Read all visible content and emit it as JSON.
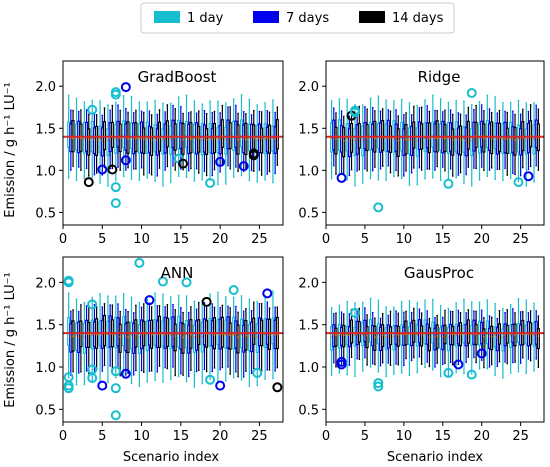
{
  "figure": {
    "xlabel": "Scenario index",
    "ylabel": "Emission  /  g h⁻¹ LU⁻¹",
    "legend": {
      "placement": "top-center",
      "entries": [
        {
          "label": "1 day",
          "color": "#17becf"
        },
        {
          "label": "7 days",
          "color": "#0000ee"
        },
        {
          "label": "14 days",
          "color": "#000000"
        }
      ]
    },
    "reference_line": {
      "value": 1.4,
      "color": "#d62728"
    }
  },
  "chart_data": [
    {
      "type": "box",
      "title": "GradBoost",
      "grid": false,
      "xlim": [
        0,
        28
      ],
      "ylim": [
        0.35,
        2.3
      ],
      "xticks": [
        0,
        5,
        10,
        15,
        20,
        25
      ],
      "yticks": [
        0.5,
        1.0,
        1.5,
        2.0
      ],
      "reference_line": 1.4,
      "box_summary": {
        "low_whisker": 0.95,
        "q1": 1.22,
        "median": 1.38,
        "q3": 1.55,
        "high_whisker": 1.75
      },
      "outliers": [
        {
          "x": 3,
          "y": 0.86,
          "series": "14 days"
        },
        {
          "x": 4,
          "y": 1.72,
          "series": "1 day"
        },
        {
          "x": 5,
          "y": 1.01,
          "series": "7 days"
        },
        {
          "x": 6,
          "y": 1.01,
          "series": "14 days"
        },
        {
          "x": 7,
          "y": 1.9,
          "series": "1 day"
        },
        {
          "x": 7,
          "y": 1.93,
          "series": "1 day"
        },
        {
          "x": 7,
          "y": 0.8,
          "series": "1 day"
        },
        {
          "x": 7,
          "y": 0.61,
          "series": "1 day"
        },
        {
          "x": 8,
          "y": 1.99,
          "series": "7 days"
        },
        {
          "x": 8,
          "y": 1.12,
          "series": "7 days"
        },
        {
          "x": 15,
          "y": 1.14,
          "series": "1 day"
        },
        {
          "x": 15,
          "y": 1.08,
          "series": "14 days"
        },
        {
          "x": 19,
          "y": 0.85,
          "series": "1 day"
        },
        {
          "x": 20,
          "y": 1.1,
          "series": "7 days"
        },
        {
          "x": 23,
          "y": 1.05,
          "series": "7 days"
        },
        {
          "x": 24,
          "y": 1.2,
          "series": "14 days"
        },
        {
          "x": 24,
          "y": 1.18,
          "series": "14 days"
        }
      ]
    },
    {
      "type": "box",
      "title": "Ridge",
      "grid": false,
      "xlim": [
        0,
        28
      ],
      "ylim": [
        0.35,
        2.3
      ],
      "xticks": [
        0,
        5,
        10,
        15,
        20,
        25
      ],
      "yticks": [
        0.5,
        1.0,
        1.5,
        2.0
      ],
      "reference_line": 1.4,
      "box_summary": {
        "low_whisker": 0.95,
        "q1": 1.22,
        "median": 1.38,
        "q3": 1.55,
        "high_whisker": 1.75
      },
      "outliers": [
        {
          "x": 2,
          "y": 0.91,
          "series": "7 days"
        },
        {
          "x": 3,
          "y": 1.65,
          "series": "14 days"
        },
        {
          "x": 4,
          "y": 1.69,
          "series": "1 day"
        },
        {
          "x": 4,
          "y": 1.71,
          "series": "1 day"
        },
        {
          "x": 7,
          "y": 0.56,
          "series": "1 day"
        },
        {
          "x": 16,
          "y": 0.84,
          "series": "1 day"
        },
        {
          "x": 19,
          "y": 1.92,
          "series": "1 day"
        },
        {
          "x": 25,
          "y": 0.86,
          "series": "1 day"
        },
        {
          "x": 26,
          "y": 0.93,
          "series": "7 days"
        }
      ]
    },
    {
      "type": "box",
      "title": "ANN",
      "grid": false,
      "xlim": [
        0,
        28
      ],
      "ylim": [
        0.35,
        2.3
      ],
      "xticks": [
        0,
        5,
        10,
        15,
        20,
        25
      ],
      "yticks": [
        0.5,
        1.0,
        1.5,
        2.0
      ],
      "reference_line": 1.4,
      "box_summary": {
        "low_whisker": 0.9,
        "q1": 1.22,
        "median": 1.38,
        "q3": 1.55,
        "high_whisker": 1.75
      },
      "outliers": [
        {
          "x": 1,
          "y": 2.02,
          "series": "1 day"
        },
        {
          "x": 1,
          "y": 2.0,
          "series": "1 day"
        },
        {
          "x": 1,
          "y": 0.88,
          "series": "1 day"
        },
        {
          "x": 1,
          "y": 0.78,
          "series": "1 day"
        },
        {
          "x": 1,
          "y": 0.75,
          "series": "1 day"
        },
        {
          "x": 4,
          "y": 1.74,
          "series": "1 day"
        },
        {
          "x": 4,
          "y": 0.97,
          "series": "1 day"
        },
        {
          "x": 4,
          "y": 0.87,
          "series": "1 day"
        },
        {
          "x": 5,
          "y": 0.78,
          "series": "7 days"
        },
        {
          "x": 7,
          "y": 0.95,
          "series": "1 day"
        },
        {
          "x": 7,
          "y": 0.75,
          "series": "1 day"
        },
        {
          "x": 7,
          "y": 0.43,
          "series": "1 day"
        },
        {
          "x": 8,
          "y": 0.92,
          "series": "7 days"
        },
        {
          "x": 10,
          "y": 2.23,
          "series": "1 day"
        },
        {
          "x": 11,
          "y": 1.79,
          "series": "7 days"
        },
        {
          "x": 13,
          "y": 2.01,
          "series": "1 day"
        },
        {
          "x": 16,
          "y": 2.0,
          "series": "1 day"
        },
        {
          "x": 18,
          "y": 1.77,
          "series": "14 days"
        },
        {
          "x": 19,
          "y": 0.85,
          "series": "1 day"
        },
        {
          "x": 20,
          "y": 0.78,
          "series": "7 days"
        },
        {
          "x": 22,
          "y": 1.91,
          "series": "1 day"
        },
        {
          "x": 25,
          "y": 0.93,
          "series": "1 day"
        },
        {
          "x": 26,
          "y": 1.87,
          "series": "7 days"
        },
        {
          "x": 27,
          "y": 0.76,
          "series": "14 days"
        }
      ]
    },
    {
      "type": "box",
      "title": "GausProc",
      "grid": false,
      "xlim": [
        0,
        28
      ],
      "ylim": [
        0.35,
        2.3
      ],
      "xticks": [
        0,
        5,
        10,
        15,
        20,
        25
      ],
      "yticks": [
        0.5,
        1.0,
        1.5,
        2.0
      ],
      "reference_line": 1.4,
      "box_summary": {
        "low_whisker": 1.0,
        "q1": 1.25,
        "median": 1.38,
        "q3": 1.5,
        "high_whisker": 1.68
      },
      "outliers": [
        {
          "x": 2,
          "y": 1.06,
          "series": "7 days"
        },
        {
          "x": 2,
          "y": 1.03,
          "series": "7 days"
        },
        {
          "x": 4,
          "y": 1.64,
          "series": "1 day"
        },
        {
          "x": 7,
          "y": 0.81,
          "series": "1 day"
        },
        {
          "x": 7,
          "y": 0.77,
          "series": "1 day"
        },
        {
          "x": 16,
          "y": 0.93,
          "series": "1 day"
        },
        {
          "x": 17,
          "y": 1.03,
          "series": "7 days"
        },
        {
          "x": 19,
          "y": 0.91,
          "series": "1 day"
        },
        {
          "x": 20,
          "y": 1.16,
          "series": "7 days"
        }
      ]
    }
  ]
}
